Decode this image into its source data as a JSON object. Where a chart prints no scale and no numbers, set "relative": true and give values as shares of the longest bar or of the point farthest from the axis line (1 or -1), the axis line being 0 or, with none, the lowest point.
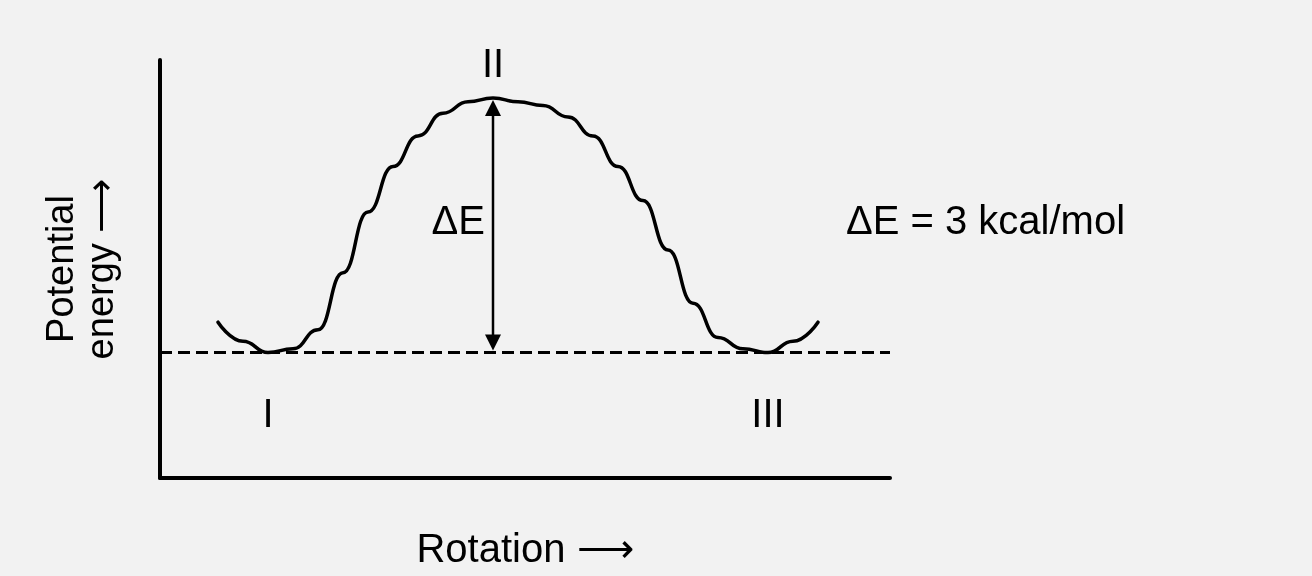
{
  "chart_data": {
    "type": "line",
    "relative": true,
    "xlabel": "Rotation ⟶",
    "ylabel": "Potential energy ⟶",
    "categories": [
      null,
      null,
      null,
      null,
      null,
      null,
      null,
      null,
      null,
      null,
      null,
      null,
      null,
      null,
      null,
      null,
      null,
      null,
      null,
      null,
      null,
      null,
      null,
      null,
      null
    ],
    "series": [
      {
        "color": "#000000",
        "values": [
          0.41,
          0.36,
          0.33,
          0.34,
          0.39,
          0.54,
          0.7,
          0.82,
          0.9,
          0.96,
          0.99,
          1,
          0.99,
          0.98,
          0.95,
          0.9,
          0.82,
          0.73,
          0.6,
          0.46,
          0.37,
          0.34,
          0.33,
          0.36,
          0.41
        ]
      }
    ],
    "ref_lines": [
      {
        "axis": "y",
        "value": 0.33,
        "color": "#000000",
        "line_style": "dashed"
      }
    ],
    "annotations": [
      "I",
      "II",
      "III",
      "ΔE",
      "ΔE = 3 kcal/mol"
    ],
    "marker": "none",
    "line_style": "solid",
    "grid": false
  }
}
